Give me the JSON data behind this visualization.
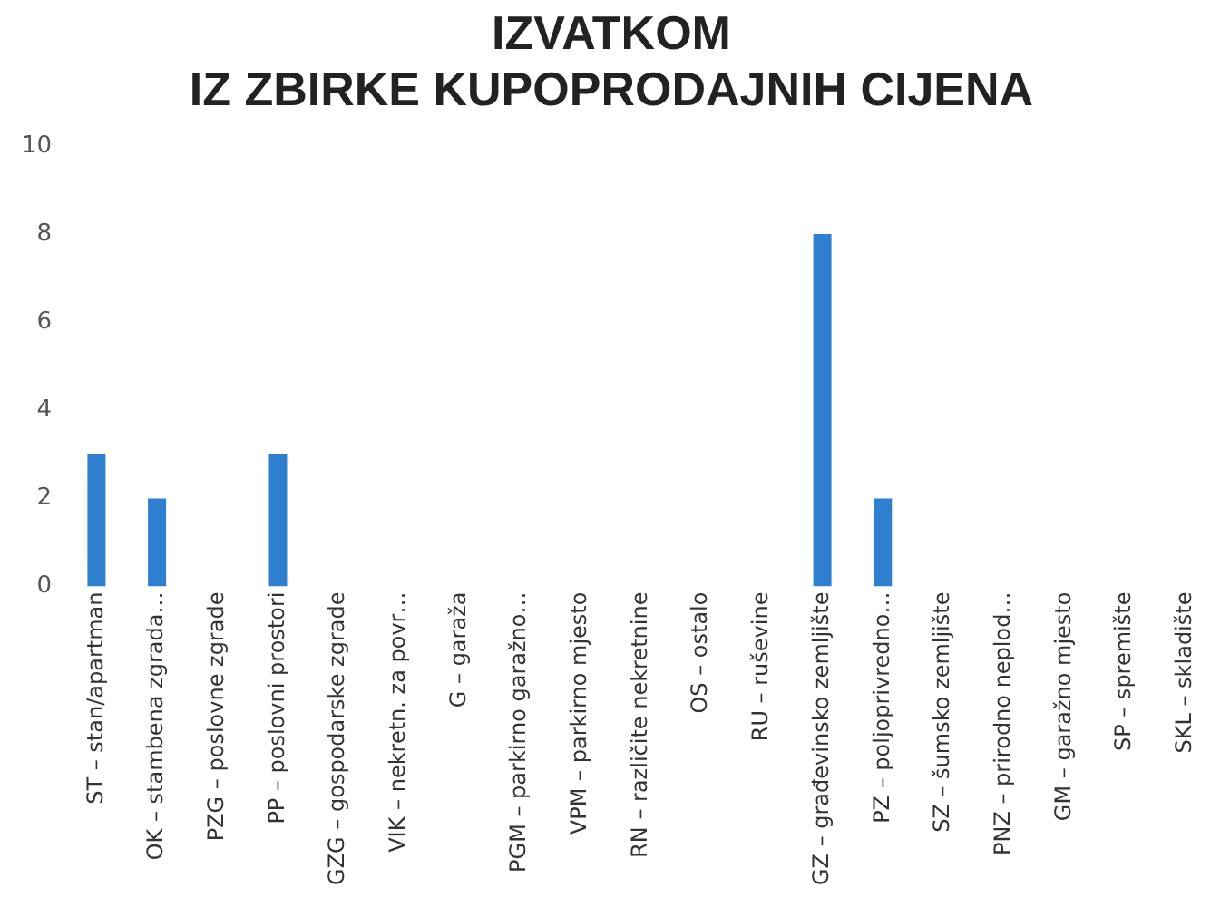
{
  "chart_data": {
    "type": "bar",
    "title": "IZVATKOM\nIZ ZBIRKE KUPOPRODAJNIH CIJENA",
    "categories": [
      "ST – stan/apartman",
      "OK – stambena zgrada…",
      "PZG – poslovne zgrade",
      "PP – poslovni prostori",
      "GZG – gospodarske zgrade",
      "VIK – nekretn. za povr…",
      "G – garaža",
      "PGM – parkirno garažno…",
      "VPM – parkirno mjesto",
      "RN – različite nekretnine",
      "OS – ostalo",
      "RU – ruševine",
      "GZ – građevinsko zemljište",
      "PZ – poljoprivredno…",
      "SZ – šumsko zemljište",
      "PNZ – prirodno neplod…",
      "GM – garažno mjesto",
      "SP – spremište",
      "SKL – skladište"
    ],
    "values": [
      3,
      2,
      0,
      3,
      0,
      0,
      0,
      0,
      0,
      0,
      0,
      0,
      8,
      2,
      0,
      0,
      0,
      0,
      0
    ],
    "color": "#2e7fd0",
    "ylim": [
      0,
      10
    ],
    "yticks": [
      0,
      2,
      4,
      6,
      8,
      10
    ],
    "grid": false,
    "legend": false
  }
}
